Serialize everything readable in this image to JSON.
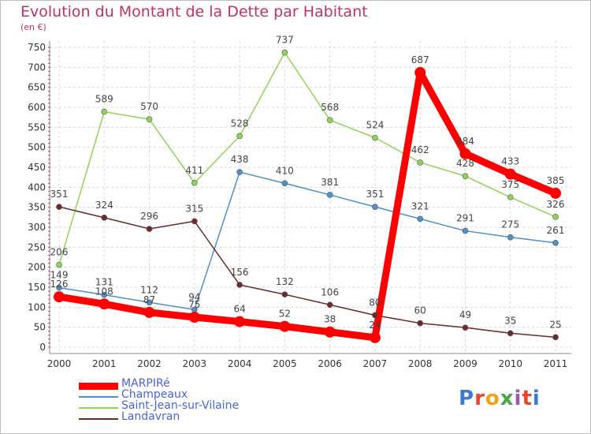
{
  "header": {
    "title": "Evolution du Montant de la Dette par Habitant",
    "unit": "(en €)"
  },
  "logo": {
    "text": "Proxiti",
    "colors": [
      "#3a7bd5",
      "#e8452c",
      "#f4a01c",
      "#45a845",
      "#9b59b6",
      "#e8452c",
      "#3a7bd5"
    ]
  },
  "chart_data": {
    "type": "line",
    "x": [
      "2000",
      "2001",
      "2002",
      "2003",
      "2004",
      "2005",
      "2006",
      "2007",
      "2008",
      "2009",
      "2010",
      "2011"
    ],
    "ylim": [
      0,
      750
    ],
    "yticks": [
      0,
      50,
      100,
      150,
      200,
      250,
      300,
      350,
      400,
      450,
      500,
      550,
      600,
      650,
      700,
      750
    ],
    "grid": true,
    "legend_position": "bottom-left",
    "series": [
      {
        "name": "MARPIRé",
        "color": "#ff0000",
        "values": [
          126,
          108,
          87,
          75,
          64,
          52,
          38,
          24,
          687,
          484,
          433,
          385
        ]
      },
      {
        "name": "Champeaux",
        "color": "#4f90c9",
        "values": [
          149,
          131,
          112,
          94,
          438,
          410,
          381,
          351,
          321,
          291,
          275,
          261
        ]
      },
      {
        "name": "Saint-Jean-sur-Vilaine",
        "color": "#8fd45a",
        "values": [
          206,
          589,
          570,
          411,
          528,
          737,
          568,
          524,
          462,
          428,
          375,
          326
        ]
      },
      {
        "name": "Landavran",
        "color": "#6b2b2b",
        "values": [
          351,
          324,
          296,
          315,
          156,
          132,
          106,
          80,
          60,
          49,
          35,
          25
        ]
      }
    ]
  }
}
